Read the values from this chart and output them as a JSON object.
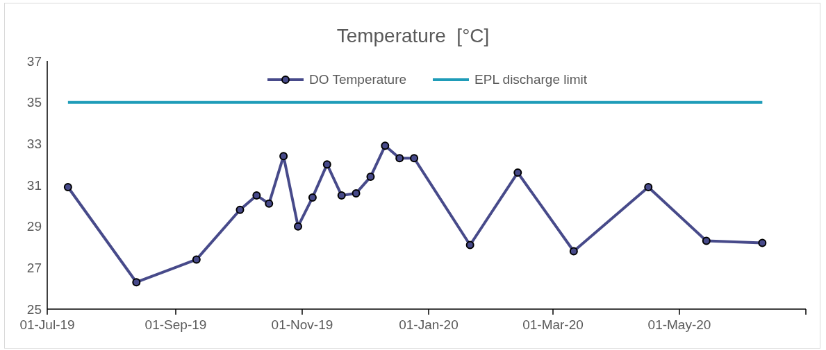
{
  "chart_data": {
    "type": "line",
    "title": "Temperature  [°C]",
    "x": [
      "2019-07-11",
      "2019-08-13",
      "2019-09-11",
      "2019-10-02",
      "2019-10-10",
      "2019-10-16",
      "2019-10-23",
      "2019-10-30",
      "2019-11-06",
      "2019-11-13",
      "2019-11-20",
      "2019-11-27",
      "2019-12-04",
      "2019-12-11",
      "2019-12-18",
      "2019-12-25",
      "2020-01-21",
      "2020-02-13",
      "2020-03-11",
      "2020-04-16",
      "2020-05-14",
      "2020-06-10"
    ],
    "series": [
      {
        "name": "DO Temperature",
        "color": "#474a8a",
        "values": [
          30.9,
          26.3,
          27.4,
          29.8,
          30.5,
          30.1,
          32.4,
          29.0,
          30.4,
          32.0,
          30.5,
          30.6,
          31.4,
          32.9,
          32.3,
          32.3,
          28.1,
          31.6,
          27.8,
          30.9,
          28.3,
          28.2
        ]
      }
    ],
    "ref_lines": [
      {
        "axis": "y",
        "value": 35,
        "label": "EPL discharge limit",
        "color": "#1f9cb8"
      }
    ],
    "xlim": [
      "2019-07-01",
      "2020-07-01"
    ],
    "xticks": [
      {
        "value": "2019-07-01",
        "label": "01-Jul-19"
      },
      {
        "value": "2019-09-01",
        "label": "01-Sep-19"
      },
      {
        "value": "2019-11-01",
        "label": "01-Nov-19"
      },
      {
        "value": "2020-01-01",
        "label": "01-Jan-20"
      },
      {
        "value": "2020-03-01",
        "label": "01-Mar-20"
      },
      {
        "value": "2020-05-01",
        "label": "01-May-20"
      },
      {
        "value": "2020-07-01",
        "label": null
      }
    ],
    "ylim": [
      25,
      37
    ],
    "yticks": [
      25,
      27,
      29,
      31,
      33,
      35,
      37
    ],
    "grid": false,
    "legend": "top",
    "marker": "circle",
    "line_style": "solid"
  }
}
